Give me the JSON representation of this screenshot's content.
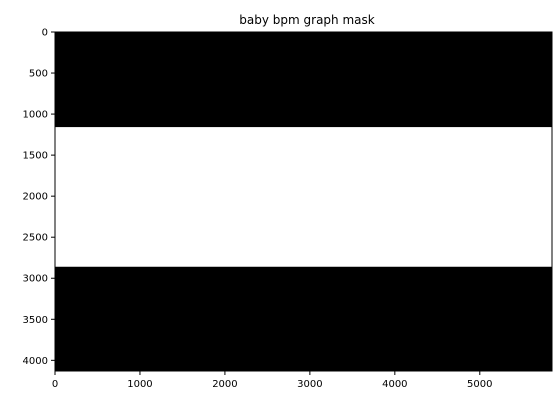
{
  "chart_data": {
    "type": "heatmap",
    "title": "baby bpm graph mask",
    "xlabel": "",
    "ylabel": "",
    "xlim": [
      0,
      5850
    ],
    "ylim": [
      4130,
      0
    ],
    "y_inverted": true,
    "grid": false,
    "colormap": "binary (0 = black, 1 = white)",
    "x_ticks": [
      0,
      1000,
      2000,
      3000,
      4000,
      5000
    ],
    "y_ticks": [
      0,
      500,
      1000,
      1500,
      2000,
      2500,
      3000,
      3500,
      4000
    ],
    "bands": [
      {
        "y_start": 0,
        "y_end": 1160,
        "value": 0,
        "color": "#000000"
      },
      {
        "y_start": 1160,
        "y_end": 2860,
        "value": 1,
        "color": "#ffffff"
      },
      {
        "y_start": 2860,
        "y_end": 4130,
        "value": 0,
        "color": "#000000"
      }
    ]
  }
}
